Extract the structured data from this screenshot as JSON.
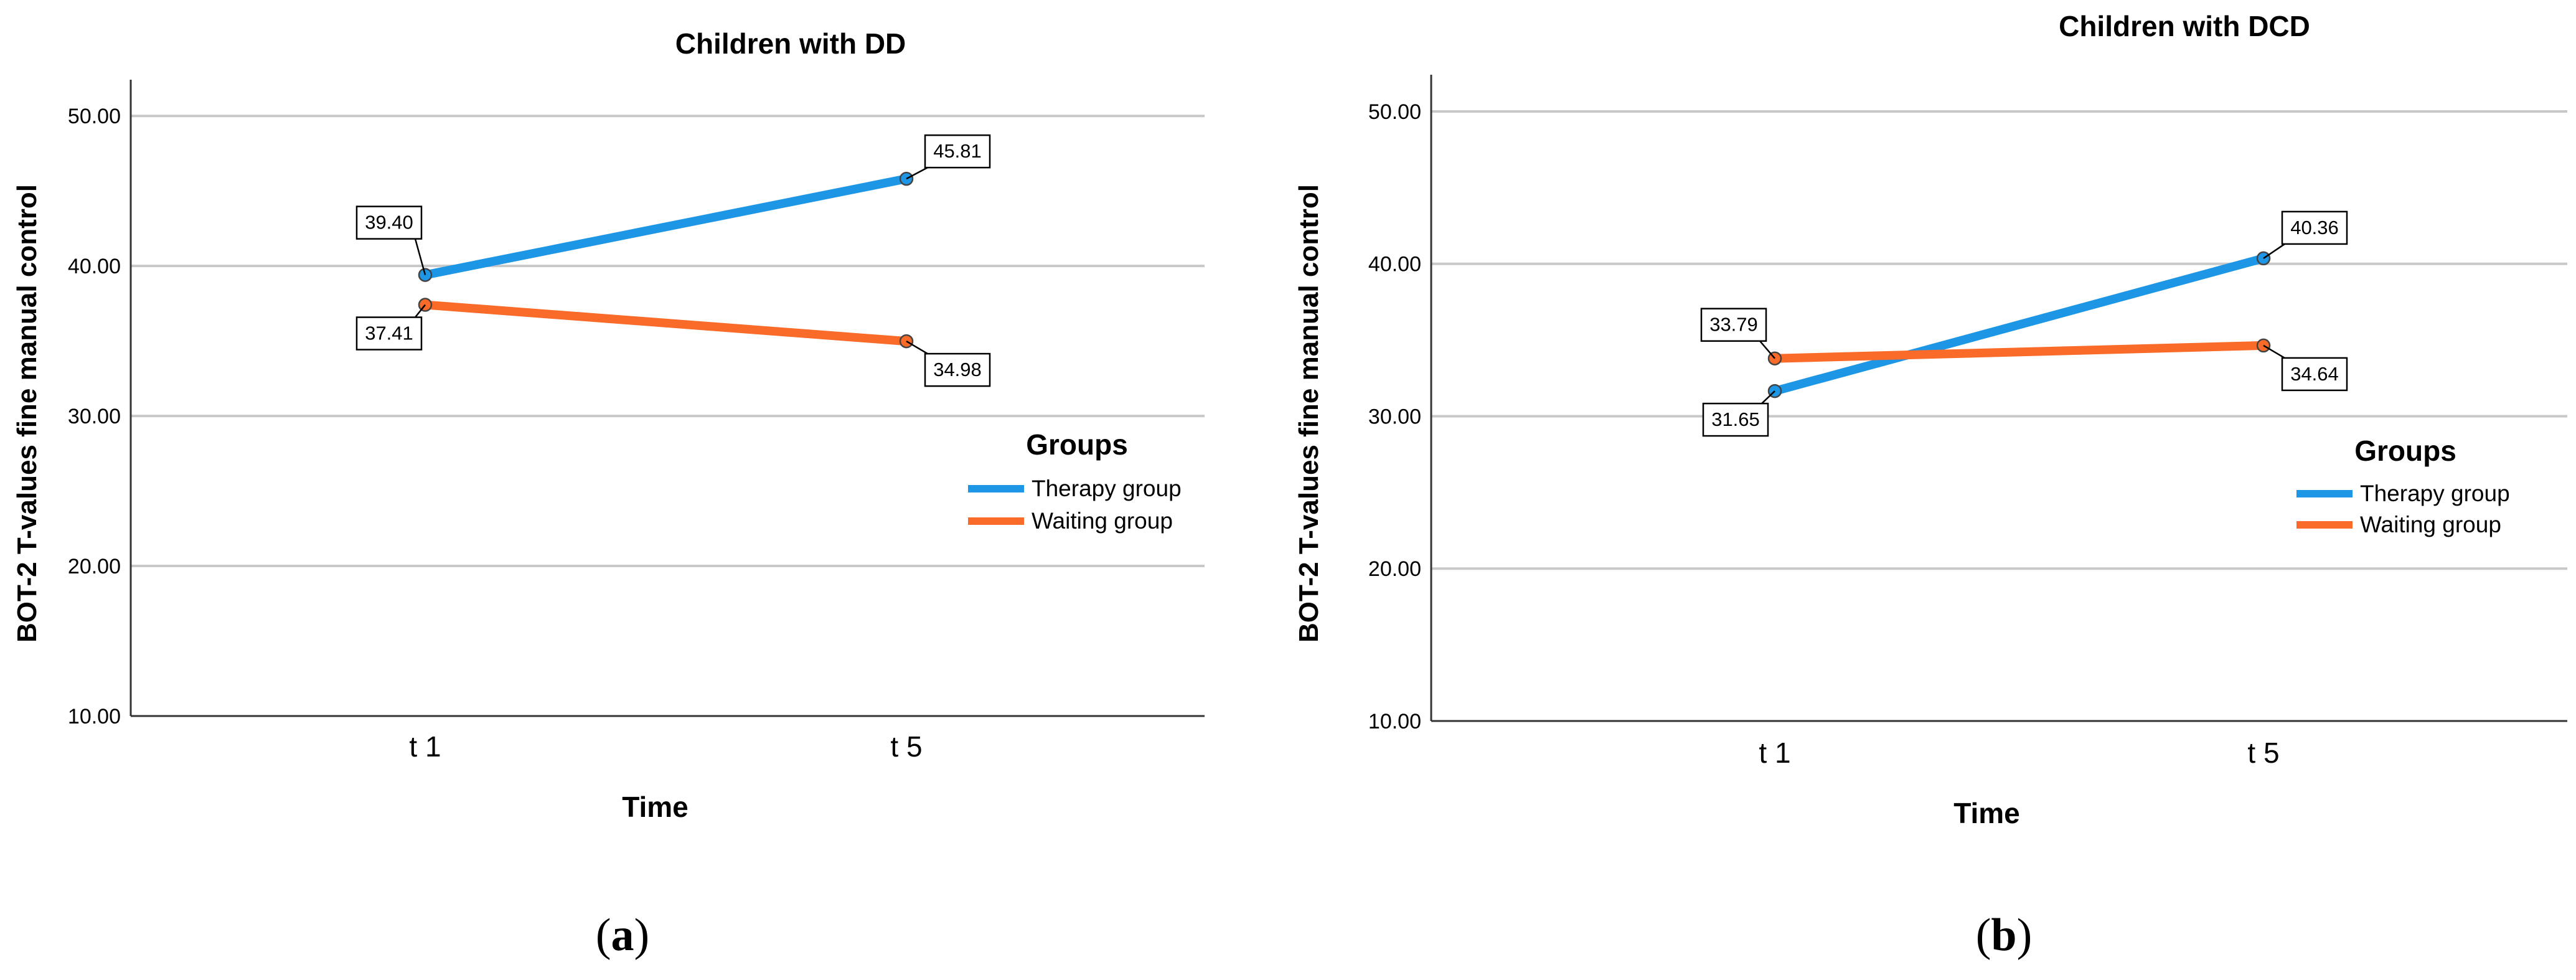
{
  "colors": {
    "therapy": "#1e96e6",
    "waiting": "#fa6a28",
    "grid": "#c8c8c8",
    "axis": "#333333"
  },
  "chart_data": [
    {
      "type": "line",
      "title": "Children with DD",
      "xlabel": "Time",
      "ylabel": "BOT-2 T-values fine manual control",
      "categories": [
        "t 1",
        "t 5"
      ],
      "ylim": [
        10,
        52
      ],
      "yticks": [
        "10.00",
        "20.00",
        "30.00",
        "40.00",
        "50.00"
      ],
      "legend_title": "Groups",
      "series": [
        {
          "name": "Therapy group",
          "values": [
            39.4,
            45.81
          ],
          "labels": [
            "39.40",
            "45.81"
          ]
        },
        {
          "name": "Waiting group",
          "values": [
            37.41,
            34.98
          ],
          "labels": [
            "37.41",
            "34.98"
          ]
        }
      ],
      "caption_open": "(",
      "caption_letter": "a",
      "caption_close": ")"
    },
    {
      "type": "line",
      "title": "Children with DCD",
      "xlabel": "Time",
      "ylabel": "BOT-2 T-values fine manual control",
      "categories": [
        "t 1",
        "t 5"
      ],
      "ylim": [
        10,
        52
      ],
      "yticks": [
        "10.00",
        "20.00",
        "30.00",
        "40.00",
        "50.00"
      ],
      "legend_title": "Groups",
      "series": [
        {
          "name": "Therapy group",
          "values": [
            31.65,
            40.36
          ],
          "labels": [
            "31.65",
            "40.36"
          ]
        },
        {
          "name": "Waiting group",
          "values": [
            33.79,
            34.64
          ],
          "labels": [
            "33.79",
            "34.64"
          ]
        }
      ],
      "caption_open": "(",
      "caption_letter": "b",
      "caption_close": ")"
    }
  ]
}
